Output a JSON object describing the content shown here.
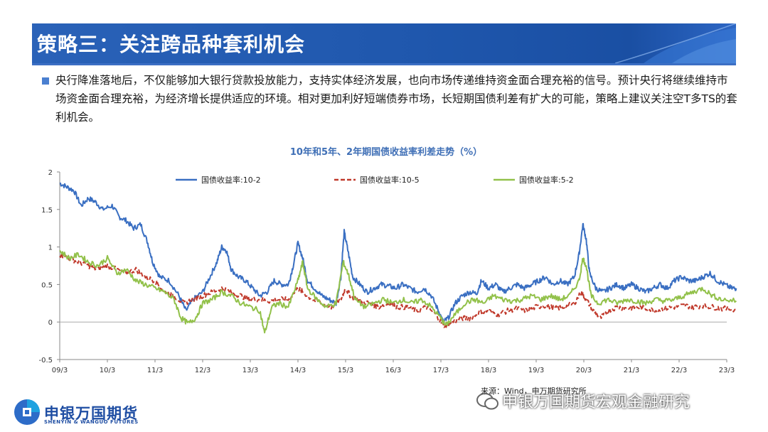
{
  "header": {
    "title": "策略三：关注跨品种套利机会"
  },
  "paragraph": "央行降准落地后，不仅能够加大银行贷款投放能力，支持实体经济发展，也向市场传递维持资金面合理充裕的信号。预计央行将继续维持市场资金面合理充裕，为经济增长提供适应的环境。相对更加利好短端债券市场，长短期国债利差有扩大的可能，策略上建议关注空T多TS的套利机会。",
  "source": "来源：Wind，申万期货研究所",
  "watermark": "申银万国期货宏观金融研究",
  "logo": {
    "name": "申银万国期货",
    "sub": "SHENYIN & WANGUO FUTURES"
  },
  "colors": {
    "s1": "#3a6fc2",
    "s2": "#c0392b",
    "s3": "#92c14a",
    "title": "#3f6fb6",
    "banner": "#1f57ad"
  },
  "chart_data": {
    "type": "line",
    "title": "10年和5年、2年期国债收益率利差走势（%）",
    "xlabel": "",
    "ylabel": "",
    "ylim": [
      -0.5,
      2
    ],
    "yticks": [
      "-0.5",
      "0",
      "0.5",
      "1",
      "1.5",
      "2"
    ],
    "xticks": [
      "09/3",
      "10/3",
      "11/3",
      "12/3",
      "13/3",
      "14/3",
      "15/3",
      "16/3",
      "17/3",
      "18/3",
      "19/3",
      "20/3",
      "21/3",
      "22/3",
      "23/3"
    ],
    "legend_position": "top",
    "series": [
      {
        "name": "国债收益率:10-2",
        "color": "#3a6fc2",
        "dash": false,
        "points": [
          [
            0,
            1.85
          ],
          [
            0.15,
            1.8
          ],
          [
            0.3,
            1.75
          ],
          [
            0.45,
            1.55
          ],
          [
            0.6,
            1.65
          ],
          [
            0.75,
            1.6
          ],
          [
            0.9,
            1.5
          ],
          [
            1.1,
            1.55
          ],
          [
            1.25,
            1.4
          ],
          [
            1.4,
            1.35
          ],
          [
            1.55,
            1.25
          ],
          [
            1.7,
            1.3
          ],
          [
            1.85,
            1.05
          ],
          [
            1.95,
            0.8
          ],
          [
            2.1,
            0.6
          ],
          [
            2.3,
            0.55
          ],
          [
            2.5,
            0.35
          ],
          [
            2.65,
            0.15
          ],
          [
            2.8,
            0.3
          ],
          [
            3.0,
            0.4
          ],
          [
            3.15,
            0.6
          ],
          [
            3.3,
            0.8
          ],
          [
            3.4,
            1.0
          ],
          [
            3.5,
            0.95
          ],
          [
            3.6,
            0.7
          ],
          [
            3.75,
            0.6
          ],
          [
            3.9,
            0.55
          ],
          [
            4.05,
            0.45
          ],
          [
            4.2,
            0.35
          ],
          [
            4.35,
            0.4
          ],
          [
            4.5,
            0.55
          ],
          [
            4.65,
            0.5
          ],
          [
            4.8,
            0.5
          ],
          [
            4.9,
            0.75
          ],
          [
            5.0,
            1.05
          ],
          [
            5.1,
            0.85
          ],
          [
            5.2,
            0.55
          ],
          [
            5.35,
            0.45
          ],
          [
            5.5,
            0.35
          ],
          [
            5.65,
            0.3
          ],
          [
            5.8,
            0.25
          ],
          [
            5.9,
            0.6
          ],
          [
            5.97,
            1.2
          ],
          [
            6.05,
            0.95
          ],
          [
            6.15,
            0.6
          ],
          [
            6.3,
            0.5
          ],
          [
            6.45,
            0.4
          ],
          [
            6.6,
            0.45
          ],
          [
            6.75,
            0.5
          ],
          [
            6.9,
            0.48
          ],
          [
            7.05,
            0.45
          ],
          [
            7.2,
            0.5
          ],
          [
            7.35,
            0.45
          ],
          [
            7.5,
            0.4
          ],
          [
            7.65,
            0.45
          ],
          [
            7.8,
            0.35
          ],
          [
            7.95,
            0.15
          ],
          [
            8.05,
            0.0
          ],
          [
            8.15,
            0.05
          ],
          [
            8.3,
            0.25
          ],
          [
            8.45,
            0.35
          ],
          [
            8.6,
            0.4
          ],
          [
            8.75,
            0.38
          ],
          [
            8.85,
            0.55
          ],
          [
            9.0,
            0.45
          ],
          [
            9.15,
            0.5
          ],
          [
            9.3,
            0.4
          ],
          [
            9.45,
            0.45
          ],
          [
            9.6,
            0.5
          ],
          [
            9.75,
            0.45
          ],
          [
            9.9,
            0.5
          ],
          [
            10.05,
            0.55
          ],
          [
            10.2,
            0.6
          ],
          [
            10.35,
            0.5
          ],
          [
            10.5,
            0.55
          ],
          [
            10.65,
            0.5
          ],
          [
            10.8,
            0.6
          ],
          [
            10.9,
            0.9
          ],
          [
            10.98,
            1.3
          ],
          [
            11.05,
            1.1
          ],
          [
            11.12,
            0.65
          ],
          [
            11.25,
            0.45
          ],
          [
            11.4,
            0.4
          ],
          [
            11.55,
            0.45
          ],
          [
            11.7,
            0.5
          ],
          [
            11.85,
            0.45
          ],
          [
            12.0,
            0.5
          ],
          [
            12.15,
            0.45
          ],
          [
            12.3,
            0.4
          ],
          [
            12.45,
            0.45
          ],
          [
            12.6,
            0.5
          ],
          [
            12.75,
            0.45
          ],
          [
            12.9,
            0.55
          ],
          [
            13.05,
            0.6
          ],
          [
            13.2,
            0.55
          ],
          [
            13.35,
            0.55
          ],
          [
            13.5,
            0.6
          ],
          [
            13.65,
            0.65
          ],
          [
            13.8,
            0.55
          ],
          [
            13.95,
            0.5
          ],
          [
            14.1,
            0.45
          ],
          [
            14.2,
            0.45
          ]
        ]
      },
      {
        "name": "国债收益率:10-5",
        "color": "#c0392b",
        "dash": true,
        "points": [
          [
            0,
            0.9
          ],
          [
            0.2,
            0.85
          ],
          [
            0.4,
            0.8
          ],
          [
            0.6,
            0.75
          ],
          [
            0.8,
            0.7
          ],
          [
            1.0,
            0.75
          ],
          [
            1.2,
            0.7
          ],
          [
            1.4,
            0.65
          ],
          [
            1.6,
            0.7
          ],
          [
            1.8,
            0.6
          ],
          [
            2.0,
            0.55
          ],
          [
            2.2,
            0.4
          ],
          [
            2.4,
            0.35
          ],
          [
            2.6,
            0.25
          ],
          [
            2.8,
            0.3
          ],
          [
            3.0,
            0.35
          ],
          [
            3.2,
            0.4
          ],
          [
            3.4,
            0.45
          ],
          [
            3.6,
            0.4
          ],
          [
            3.8,
            0.35
          ],
          [
            4.0,
            0.3
          ],
          [
            4.2,
            0.3
          ],
          [
            4.4,
            0.28
          ],
          [
            4.6,
            0.3
          ],
          [
            4.8,
            0.3
          ],
          [
            5.0,
            0.45
          ],
          [
            5.1,
            0.4
          ],
          [
            5.3,
            0.3
          ],
          [
            5.5,
            0.25
          ],
          [
            5.7,
            0.2
          ],
          [
            5.9,
            0.3
          ],
          [
            6.0,
            0.45
          ],
          [
            6.1,
            0.35
          ],
          [
            6.3,
            0.28
          ],
          [
            6.5,
            0.25
          ],
          [
            6.7,
            0.2
          ],
          [
            6.9,
            0.25
          ],
          [
            7.1,
            0.2
          ],
          [
            7.3,
            0.2
          ],
          [
            7.5,
            0.15
          ],
          [
            7.7,
            0.2
          ],
          [
            7.9,
            0.1
          ],
          [
            8.05,
            -0.05
          ],
          [
            8.2,
            -0.02
          ],
          [
            8.4,
            0.05
          ],
          [
            8.6,
            0.05
          ],
          [
            8.8,
            0.12
          ],
          [
            9.0,
            0.15
          ],
          [
            9.2,
            0.1
          ],
          [
            9.4,
            0.15
          ],
          [
            9.6,
            0.18
          ],
          [
            9.8,
            0.15
          ],
          [
            10.0,
            0.2
          ],
          [
            10.2,
            0.22
          ],
          [
            10.4,
            0.18
          ],
          [
            10.6,
            0.2
          ],
          [
            10.8,
            0.25
          ],
          [
            10.95,
            0.4
          ],
          [
            11.05,
            0.3
          ],
          [
            11.2,
            0.15
          ],
          [
            11.35,
            0.05
          ],
          [
            11.5,
            0.15
          ],
          [
            11.7,
            0.2
          ],
          [
            11.9,
            0.18
          ],
          [
            12.1,
            0.2
          ],
          [
            12.3,
            0.18
          ],
          [
            12.5,
            0.15
          ],
          [
            12.7,
            0.18
          ],
          [
            12.9,
            0.2
          ],
          [
            13.1,
            0.22
          ],
          [
            13.3,
            0.2
          ],
          [
            13.5,
            0.22
          ],
          [
            13.7,
            0.2
          ],
          [
            13.9,
            0.18
          ],
          [
            14.2,
            0.17
          ]
        ]
      },
      {
        "name": "国债收益率:5-2",
        "color": "#92c14a",
        "dash": false,
        "points": [
          [
            0,
            0.95
          ],
          [
            0.2,
            0.85
          ],
          [
            0.4,
            0.9
          ],
          [
            0.6,
            0.8
          ],
          [
            0.8,
            0.75
          ],
          [
            1.0,
            0.85
          ],
          [
            1.2,
            0.65
          ],
          [
            1.4,
            0.7
          ],
          [
            1.6,
            0.55
          ],
          [
            1.8,
            0.5
          ],
          [
            2.0,
            0.45
          ],
          [
            2.2,
            0.4
          ],
          [
            2.4,
            0.3
          ],
          [
            2.55,
            0.05
          ],
          [
            2.7,
            -0.02
          ],
          [
            2.85,
            0.05
          ],
          [
            3.0,
            0.25
          ],
          [
            3.2,
            0.3
          ],
          [
            3.4,
            0.4
          ],
          [
            3.6,
            0.35
          ],
          [
            3.8,
            0.25
          ],
          [
            4.0,
            0.2
          ],
          [
            4.2,
            0.15
          ],
          [
            4.3,
            -0.15
          ],
          [
            4.45,
            0.2
          ],
          [
            4.6,
            0.25
          ],
          [
            4.8,
            0.2
          ],
          [
            5.0,
            0.55
          ],
          [
            5.1,
            0.8
          ],
          [
            5.2,
            0.45
          ],
          [
            5.4,
            0.3
          ],
          [
            5.6,
            0.2
          ],
          [
            5.8,
            0.25
          ],
          [
            5.95,
            0.8
          ],
          [
            6.05,
            0.65
          ],
          [
            6.2,
            0.3
          ],
          [
            6.4,
            0.2
          ],
          [
            6.6,
            0.25
          ],
          [
            6.8,
            0.3
          ],
          [
            7.0,
            0.25
          ],
          [
            7.2,
            0.3
          ],
          [
            7.4,
            0.25
          ],
          [
            7.6,
            0.3
          ],
          [
            7.8,
            0.2
          ],
          [
            8.0,
            0.05
          ],
          [
            8.1,
            -0.05
          ],
          [
            8.3,
            0.1
          ],
          [
            8.5,
            0.25
          ],
          [
            8.7,
            0.3
          ],
          [
            8.9,
            0.25
          ],
          [
            9.1,
            0.35
          ],
          [
            9.3,
            0.3
          ],
          [
            9.5,
            0.28
          ],
          [
            9.7,
            0.3
          ],
          [
            9.9,
            0.35
          ],
          [
            10.1,
            0.3
          ],
          [
            10.3,
            0.35
          ],
          [
            10.5,
            0.3
          ],
          [
            10.7,
            0.35
          ],
          [
            10.9,
            0.55
          ],
          [
            10.98,
            0.85
          ],
          [
            11.05,
            0.75
          ],
          [
            11.15,
            0.35
          ],
          [
            11.3,
            0.25
          ],
          [
            11.5,
            0.3
          ],
          [
            11.7,
            0.25
          ],
          [
            11.9,
            0.3
          ],
          [
            12.1,
            0.28
          ],
          [
            12.3,
            0.25
          ],
          [
            12.5,
            0.3
          ],
          [
            12.7,
            0.28
          ],
          [
            12.9,
            0.3
          ],
          [
            13.1,
            0.35
          ],
          [
            13.3,
            0.4
          ],
          [
            13.5,
            0.45
          ],
          [
            13.7,
            0.35
          ],
          [
            13.9,
            0.3
          ],
          [
            14.2,
            0.28
          ]
        ]
      }
    ]
  }
}
